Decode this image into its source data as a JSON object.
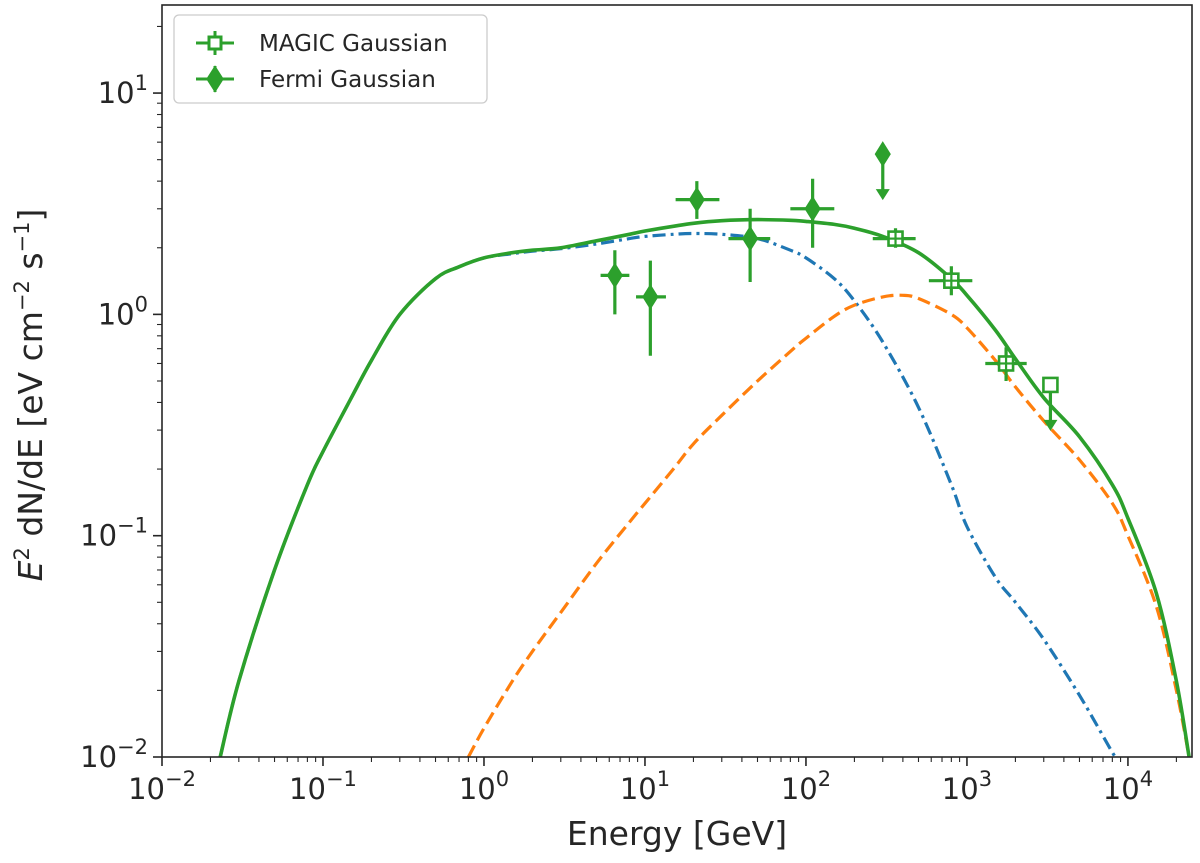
{
  "chart_data": {
    "type": "line",
    "x_scale": "log",
    "y_scale": "log",
    "xlim": [
      0.01,
      25000
    ],
    "ylim": [
      0.01,
      25
    ],
    "xlabel": "Energy [GeV]",
    "ylabel_parts": {
      "e": "E",
      "sq": "2",
      "dn": " dN/dE [eV cm",
      "m2": "−2",
      "s": " s",
      "m1": "−1",
      "close": "]"
    },
    "x_ticks": [
      {
        "value": 0.01,
        "base": "10",
        "exp": "−2"
      },
      {
        "value": 0.1,
        "base": "10",
        "exp": "−1"
      },
      {
        "value": 1,
        "base": "10",
        "exp": "0"
      },
      {
        "value": 10,
        "base": "10",
        "exp": "1"
      },
      {
        "value": 100,
        "base": "10",
        "exp": "2"
      },
      {
        "value": 1000,
        "base": "10",
        "exp": "3"
      },
      {
        "value": 10000,
        "base": "10",
        "exp": "4"
      }
    ],
    "y_ticks": [
      {
        "value": 0.01,
        "base": "10",
        "exp": "−2"
      },
      {
        "value": 0.1,
        "base": "10",
        "exp": "−1"
      },
      {
        "value": 1,
        "base": "10",
        "exp": "0"
      },
      {
        "value": 10,
        "base": "10",
        "exp": "1"
      }
    ],
    "legend": {
      "position": "top-left",
      "entries": [
        {
          "label": "MAGIC Gaussian",
          "marker": "square-open",
          "color": "#2ca02c"
        },
        {
          "label": "Fermi Gaussian",
          "marker": "diamond-filled",
          "color": "#2ca02c"
        }
      ]
    },
    "series": [
      {
        "name": "total-model",
        "style": "solid",
        "color": "#2ca02c",
        "x": [
          0.023,
          0.03,
          0.05,
          0.08,
          0.1,
          0.15,
          0.2,
          0.3,
          0.5,
          0.7,
          1,
          1.5,
          2,
          3,
          5,
          8,
          10,
          15,
          20,
          30,
          50,
          80,
          100,
          150,
          200,
          300,
          500,
          800,
          1000,
          1500,
          2000,
          3000,
          5000,
          8000,
          10000,
          15000,
          20000,
          24000
        ],
        "y": [
          0.01,
          0.022,
          0.07,
          0.17,
          0.24,
          0.42,
          0.62,
          1.0,
          1.45,
          1.64,
          1.8,
          1.9,
          1.95,
          2.0,
          2.15,
          2.3,
          2.38,
          2.5,
          2.58,
          2.65,
          2.68,
          2.66,
          2.63,
          2.55,
          2.45,
          2.25,
          1.9,
          1.45,
          1.22,
          0.85,
          0.63,
          0.42,
          0.28,
          0.17,
          0.12,
          0.055,
          0.022,
          0.01
        ]
      },
      {
        "name": "component-1",
        "style": "dashdot",
        "color": "#1f77b4",
        "x": [
          0.023,
          0.03,
          0.05,
          0.08,
          0.1,
          0.15,
          0.2,
          0.3,
          0.5,
          0.7,
          1,
          1.5,
          2,
          3,
          5,
          8,
          10,
          15,
          20,
          30,
          50,
          80,
          100,
          150,
          200,
          300,
          500,
          800,
          1000,
          1500,
          2000,
          3000,
          5000,
          8000,
          8500
        ],
        "y": [
          0.01,
          0.022,
          0.07,
          0.17,
          0.24,
          0.42,
          0.62,
          1.0,
          1.45,
          1.64,
          1.8,
          1.88,
          1.93,
          1.98,
          2.08,
          2.2,
          2.25,
          2.3,
          2.32,
          2.3,
          2.2,
          1.95,
          1.8,
          1.45,
          1.15,
          0.75,
          0.38,
          0.17,
          0.11,
          0.065,
          0.05,
          0.034,
          0.019,
          0.0105,
          0.01
        ]
      },
      {
        "name": "component-2",
        "style": "dashed",
        "color": "#ff7f0e",
        "x": [
          0.8,
          1,
          1.5,
          2,
          3,
          5,
          8,
          10,
          15,
          20,
          30,
          50,
          80,
          100,
          150,
          200,
          300,
          400,
          500,
          800,
          1000,
          1500,
          2000,
          3000,
          5000,
          8000,
          10000,
          15000,
          20000,
          24000
        ],
        "y": [
          0.01,
          0.0135,
          0.022,
          0.03,
          0.045,
          0.075,
          0.115,
          0.14,
          0.2,
          0.26,
          0.35,
          0.5,
          0.68,
          0.78,
          0.98,
          1.1,
          1.2,
          1.22,
          1.18,
          1.0,
          0.87,
          0.62,
          0.47,
          0.33,
          0.22,
          0.14,
          0.1,
          0.048,
          0.02,
          0.01
        ]
      }
    ],
    "points": {
      "fermi": [
        {
          "x": 6.5,
          "y": 1.5,
          "x_lo": 5.3,
          "x_hi": 8.0,
          "y_lo": 1.0,
          "y_hi": 1.95
        },
        {
          "x": 10.8,
          "y": 1.2,
          "x_lo": 8.8,
          "x_hi": 13.5,
          "y_lo": 0.65,
          "y_hi": 1.75
        },
        {
          "x": 21,
          "y": 3.3,
          "x_lo": 15.5,
          "x_hi": 29,
          "y_lo": 2.7,
          "y_hi": 4.0
        },
        {
          "x": 45,
          "y": 2.2,
          "x_lo": 33,
          "x_hi": 60,
          "y_lo": 1.4,
          "y_hi": 3.0
        },
        {
          "x": 110,
          "y": 3.0,
          "x_lo": 80,
          "x_hi": 150,
          "y_lo": 2.0,
          "y_hi": 4.1
        }
      ],
      "magic": [
        {
          "x": 360,
          "y": 2.2,
          "x_lo": 260,
          "x_hi": 480,
          "y_lo": 2.0,
          "y_hi": 2.45
        },
        {
          "x": 800,
          "y": 1.42,
          "x_lo": 580,
          "x_hi": 1080,
          "y_lo": 1.22,
          "y_hi": 1.65
        },
        {
          "x": 1750,
          "y": 0.6,
          "x_lo": 1300,
          "x_hi": 2350,
          "y_lo": 0.5,
          "y_hi": 0.71
        }
      ],
      "upper_limits": [
        {
          "x": 300,
          "y": 5.3,
          "marker": "diamond-filled"
        },
        {
          "x": 3300,
          "y": 0.48,
          "marker": "square-open"
        }
      ]
    }
  }
}
